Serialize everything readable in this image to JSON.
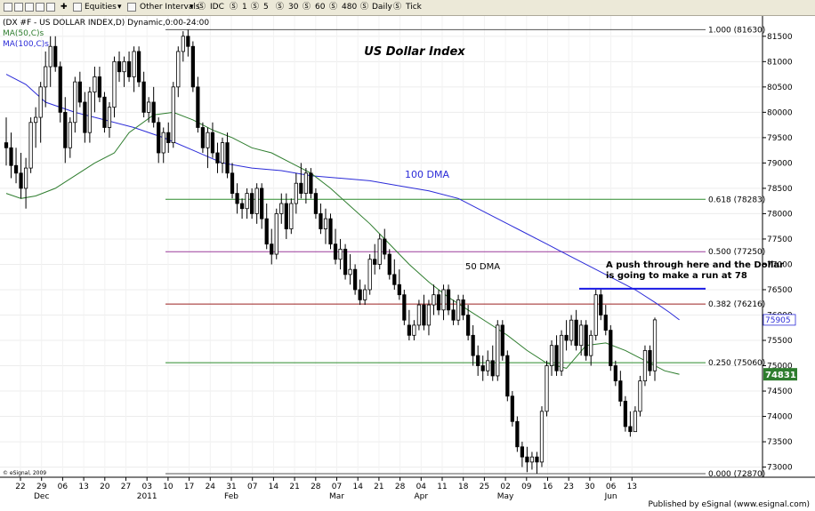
{
  "toolbar": {
    "equities": "Equities",
    "other_intervals": "Other Intervals",
    "idc": "IDC",
    "i1": "1",
    "i5": "5",
    "i30": "30",
    "i60": "60",
    "i480": "480",
    "daily": "Daily",
    "tick": "Tick"
  },
  "legend": {
    "symbol": "(DX #F - US DOLLAR INDEX,D) Dynamic,0:00-24:00",
    "ma50": "MA(50,C)s",
    "ma100": "MA(100,C)s"
  },
  "copyright": "© eSignal, 2009",
  "footer": "Published by eSignal (www.esignal.com)",
  "colors": {
    "ma50": "#2e7d2e",
    "ma100": "#2b2bd8",
    "fib_green": "#2e8b2e",
    "fib_purple": "#9b3b9b",
    "fib_red": "#9b2020",
    "fib_gray": "#555555",
    "push_line": "#1a1ae6",
    "last_price_bg": "#2e7d2e",
    "current_label_bg": "#ffffff"
  },
  "chart_data": {
    "type": "candlestick",
    "title": "US Dollar Index",
    "ylim": [
      72800,
      81900
    ],
    "y_ticks": [
      73000,
      73500,
      74000,
      74500,
      75000,
      75500,
      76000,
      76500,
      77000,
      77500,
      78000,
      78500,
      79000,
      79500,
      80000,
      80500,
      81000,
      81500
    ],
    "x_day_labels": [
      "22",
      "29",
      "06",
      "13",
      "20",
      "27",
      "03",
      "10",
      "17",
      "24",
      "31",
      "07",
      "14",
      "21",
      "28",
      "07",
      "14",
      "21",
      "28",
      "04",
      "11",
      "18",
      "25",
      "02",
      "09",
      "16",
      "23",
      "30",
      "06",
      "13"
    ],
    "x_month_labels": [
      {
        "label": "Dec",
        "at": 1
      },
      {
        "label": "2011",
        "at": 6
      },
      {
        "label": "Feb",
        "at": 10
      },
      {
        "label": "Mar",
        "at": 15
      },
      {
        "label": "Apr",
        "at": 19
      },
      {
        "label": "May",
        "at": 23
      },
      {
        "label": "Jun",
        "at": 28
      }
    ],
    "fib_levels": [
      {
        "ratio": "1.000",
        "value": 81630,
        "label": "1.000 (81630)",
        "color": "fib_gray"
      },
      {
        "ratio": "0.618",
        "value": 78283,
        "label": "0.618 (78283)",
        "color": "fib_green"
      },
      {
        "ratio": "0.500",
        "value": 77250,
        "label": "0.500 (77250)",
        "color": "fib_purple"
      },
      {
        "ratio": "0.382",
        "value": 76216,
        "label": "0.382 (76216)",
        "color": "fib_red"
      },
      {
        "ratio": "0.250",
        "value": 75060,
        "label": "0.250 (75060)",
        "color": "fib_green"
      },
      {
        "ratio": "0.000",
        "value": 72870,
        "label": "0.000 (72870)",
        "color": "fib_gray"
      }
    ],
    "annotations": {
      "ma100_label": "100 DMA",
      "ma50_label": "50 DMA",
      "push_text_1": "A push through here and the Dollar",
      "push_text_2": "is going to make a run at 78",
      "push_level": 76520
    },
    "price_labels": {
      "ma100_value": "75905",
      "last_price": "74831"
    },
    "ma100": [
      [
        0,
        80750
      ],
      [
        4,
        80550
      ],
      [
        8,
        80200
      ],
      [
        14,
        80000
      ],
      [
        20,
        79850
      ],
      [
        26,
        79700
      ],
      [
        32,
        79500
      ],
      [
        38,
        79250
      ],
      [
        44,
        79000
      ],
      [
        50,
        78900
      ],
      [
        56,
        78850
      ],
      [
        62,
        78750
      ],
      [
        68,
        78700
      ],
      [
        74,
        78650
      ],
      [
        80,
        78550
      ],
      [
        86,
        78450
      ],
      [
        92,
        78300
      ],
      [
        98,
        78000
      ],
      [
        104,
        77700
      ],
      [
        110,
        77400
      ],
      [
        116,
        77100
      ],
      [
        122,
        76800
      ],
      [
        128,
        76500
      ],
      [
        132,
        76250
      ],
      [
        135,
        76050
      ],
      [
        137,
        75905
      ]
    ],
    "ma50": [
      [
        0,
        78400
      ],
      [
        3,
        78300
      ],
      [
        6,
        78350
      ],
      [
        10,
        78500
      ],
      [
        14,
        78750
      ],
      [
        18,
        79000
      ],
      [
        22,
        79200
      ],
      [
        25,
        79600
      ],
      [
        30,
        79950
      ],
      [
        34,
        80000
      ],
      [
        38,
        79850
      ],
      [
        42,
        79650
      ],
      [
        46,
        79500
      ],
      [
        50,
        79300
      ],
      [
        54,
        79200
      ],
      [
        58,
        79000
      ],
      [
        62,
        78800
      ],
      [
        66,
        78500
      ],
      [
        70,
        78150
      ],
      [
        74,
        77800
      ],
      [
        78,
        77400
      ],
      [
        82,
        77000
      ],
      [
        86,
        76650
      ],
      [
        90,
        76350
      ],
      [
        94,
        76100
      ],
      [
        98,
        75850
      ],
      [
        102,
        75600
      ],
      [
        106,
        75300
      ],
      [
        110,
        75050
      ],
      [
        114,
        74950
      ],
      [
        118,
        75400
      ],
      [
        122,
        75450
      ],
      [
        126,
        75300
      ],
      [
        130,
        75100
      ],
      [
        134,
        74900
      ],
      [
        137,
        74831
      ]
    ],
    "candles": [
      [
        79400,
        79900,
        78950,
        79300
      ],
      [
        79300,
        79600,
        78700,
        78950
      ],
      [
        78950,
        79300,
        78600,
        78800
      ],
      [
        78800,
        79200,
        78300,
        78500
      ],
      [
        78500,
        79100,
        78100,
        78900
      ],
      [
        78900,
        79900,
        78800,
        79800
      ],
      [
        79800,
        80100,
        79300,
        79900
      ],
      [
        79900,
        80600,
        79400,
        80500
      ],
      [
        80500,
        81200,
        80100,
        80900
      ],
      [
        80900,
        81500,
        80500,
        81300
      ],
      [
        81300,
        81500,
        80800,
        80900
      ],
      [
        80900,
        81000,
        79800,
        80000
      ],
      [
        80000,
        80300,
        79000,
        79300
      ],
      [
        79300,
        79900,
        79100,
        79800
      ],
      [
        79800,
        80700,
        79600,
        80600
      ],
      [
        80600,
        80800,
        80100,
        80200
      ],
      [
        80200,
        80400,
        79400,
        79600
      ],
      [
        79600,
        80500,
        79400,
        80400
      ],
      [
        80400,
        80900,
        80000,
        80700
      ],
      [
        80700,
        80900,
        80200,
        80300
      ],
      [
        80300,
        80400,
        79600,
        79700
      ],
      [
        79700,
        80200,
        79500,
        80100
      ],
      [
        80100,
        81100,
        79900,
        81000
      ],
      [
        81000,
        81200,
        80600,
        80800
      ],
      [
        80800,
        81100,
        80500,
        81000
      ],
      [
        81000,
        81200,
        80600,
        80700
      ],
      [
        80700,
        81300,
        80400,
        81200
      ],
      [
        81200,
        81300,
        80500,
        80600
      ],
      [
        80600,
        80800,
        79900,
        80000
      ],
      [
        80000,
        80300,
        79800,
        80200
      ],
      [
        80200,
        80500,
        79700,
        79800
      ],
      [
        79800,
        79900,
        79000,
        79200
      ],
      [
        79200,
        79700,
        79000,
        79600
      ],
      [
        79600,
        79800,
        79200,
        79400
      ],
      [
        79400,
        80600,
        79300,
        80500
      ],
      [
        80500,
        81300,
        80300,
        81200
      ],
      [
        81200,
        81600,
        81000,
        81500
      ],
      [
        81500,
        81630,
        81100,
        81300
      ],
      [
        81300,
        81400,
        80400,
        80500
      ],
      [
        80500,
        80700,
        79600,
        79700
      ],
      [
        79700,
        79800,
        79200,
        79300
      ],
      [
        79300,
        79700,
        78900,
        79600
      ],
      [
        79600,
        79800,
        79100,
        79200
      ],
      [
        79200,
        79400,
        78800,
        79000
      ],
      [
        79000,
        79500,
        78800,
        79400
      ],
      [
        79400,
        79600,
        78700,
        78800
      ],
      [
        78800,
        79000,
        78300,
        78400
      ],
      [
        78400,
        78600,
        78000,
        78200
      ],
      [
        78200,
        78300,
        77900,
        78100
      ],
      [
        78100,
        78500,
        77900,
        78400
      ],
      [
        78400,
        78500,
        77900,
        78000
      ],
      [
        78000,
        78600,
        77800,
        78500
      ],
      [
        78500,
        78600,
        77700,
        77900
      ],
      [
        77900,
        78200,
        77300,
        77400
      ],
      [
        77400,
        77700,
        77000,
        77200
      ],
      [
        77200,
        78100,
        77100,
        78000
      ],
      [
        78000,
        78400,
        77800,
        78200
      ],
      [
        78200,
        78400,
        77500,
        77700
      ],
      [
        77700,
        78300,
        77600,
        78200
      ],
      [
        78200,
        78800,
        78000,
        78600
      ],
      [
        78600,
        79000,
        78300,
        78400
      ],
      [
        78400,
        78900,
        78200,
        78800
      ],
      [
        78800,
        78900,
        78300,
        78400
      ],
      [
        78400,
        78500,
        77900,
        78000
      ],
      [
        78000,
        78200,
        77600,
        77700
      ],
      [
        77700,
        78100,
        77400,
        77900
      ],
      [
        77900,
        78000,
        77300,
        77400
      ],
      [
        77400,
        77700,
        77000,
        77100
      ],
      [
        77100,
        77500,
        76900,
        77300
      ],
      [
        77300,
        77400,
        76700,
        76800
      ],
      [
        76800,
        77200,
        76600,
        76900
      ],
      [
        76900,
        77000,
        76400,
        76500
      ],
      [
        76500,
        76700,
        76200,
        76300
      ],
      [
        76300,
        76600,
        76200,
        76500
      ],
      [
        76500,
        77200,
        76400,
        77100
      ],
      [
        77100,
        77400,
        76800,
        77000
      ],
      [
        77000,
        77600,
        76900,
        77500
      ],
      [
        77500,
        77700,
        77100,
        77200
      ],
      [
        77200,
        77300,
        76700,
        76800
      ],
      [
        76800,
        77100,
        76500,
        76600
      ],
      [
        76600,
        76900,
        76300,
        76400
      ],
      [
        76400,
        76500,
        75800,
        75900
      ],
      [
        75800,
        76100,
        75500,
        75600
      ],
      [
        75600,
        75900,
        75500,
        75800
      ],
      [
        75800,
        76300,
        75700,
        76200
      ],
      [
        76200,
        76400,
        75700,
        75800
      ],
      [
        75800,
        76300,
        75600,
        76200
      ],
      [
        76200,
        76600,
        76000,
        76400
      ],
      [
        76400,
        76500,
        76000,
        76100
      ],
      [
        76100,
        76600,
        75900,
        76500
      ],
      [
        76500,
        76600,
        76000,
        76100
      ],
      [
        76100,
        76300,
        75800,
        75900
      ],
      [
        75900,
        76400,
        75800,
        76300
      ],
      [
        76300,
        76400,
        75900,
        76000
      ],
      [
        76000,
        76200,
        75500,
        75600
      ],
      [
        75600,
        75800,
        75000,
        75200
      ],
      [
        75200,
        75400,
        74800,
        75000
      ],
      [
        75000,
        75200,
        74700,
        74900
      ],
      [
        74900,
        75300,
        74800,
        75100
      ],
      [
        75100,
        75400,
        74700,
        74800
      ],
      [
        74800,
        75900,
        74700,
        75800
      ],
      [
        75800,
        75900,
        75100,
        75200
      ],
      [
        75200,
        75300,
        74300,
        74400
      ],
      [
        74400,
        74500,
        73800,
        73900
      ],
      [
        73900,
        74000,
        73300,
        73400
      ],
      [
        73400,
        73500,
        73000,
        73200
      ],
      [
        73200,
        73400,
        72900,
        73100
      ],
      [
        73100,
        73300,
        72950,
        73200
      ],
      [
        73200,
        73300,
        72870,
        73100
      ],
      [
        73100,
        74200,
        73000,
        74100
      ],
      [
        74100,
        75100,
        74000,
        75000
      ],
      [
        75000,
        75500,
        74800,
        75400
      ],
      [
        75400,
        75600,
        74800,
        74900
      ],
      [
        74900,
        75700,
        74800,
        75600
      ],
      [
        75600,
        75900,
        75300,
        75500
      ],
      [
        75500,
        76000,
        75400,
        75900
      ],
      [
        75900,
        76100,
        75300,
        75400
      ],
      [
        75400,
        75900,
        75200,
        75800
      ],
      [
        75800,
        75900,
        75100,
        75200
      ],
      [
        75200,
        75700,
        75000,
        75600
      ],
      [
        75600,
        76500,
        75500,
        76400
      ],
      [
        76400,
        76520,
        75900,
        76000
      ],
      [
        76000,
        76200,
        75600,
        75700
      ],
      [
        75700,
        75800,
        74900,
        75000
      ],
      [
        75000,
        75100,
        74600,
        74700
      ],
      [
        74700,
        74900,
        74200,
        74300
      ],
      [
        74300,
        74400,
        73700,
        73800
      ],
      [
        73800,
        74100,
        73600,
        73700
      ],
      [
        73700,
        74200,
        73700,
        74100
      ],
      [
        74100,
        74800,
        74000,
        74700
      ],
      [
        74700,
        75400,
        74600,
        75300
      ],
      [
        75300,
        75400,
        74800,
        74900
      ],
      [
        74900,
        75950,
        74700,
        75905
      ]
    ]
  }
}
